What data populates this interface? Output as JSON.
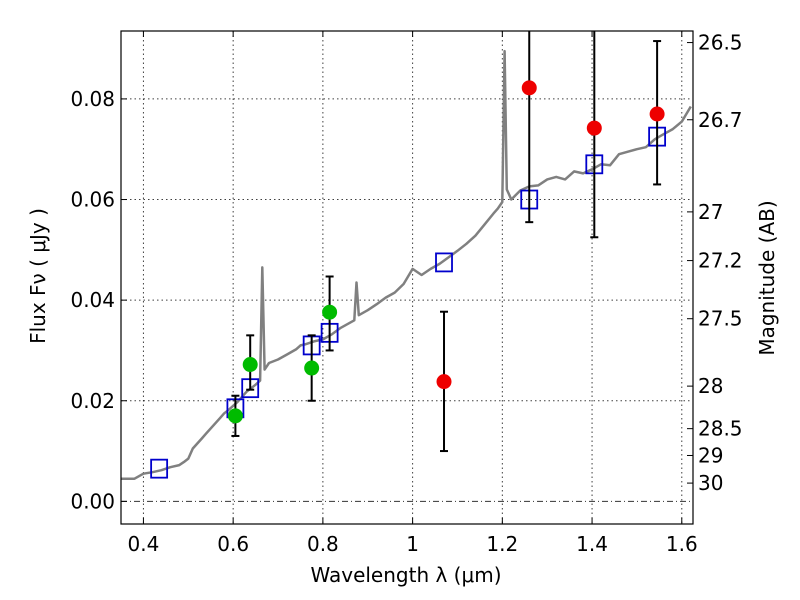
{
  "chart_data": {
    "type": "scatter",
    "xlabel": "Wavelength  λ (μm)",
    "ylabel": "Flux  Fν  ( μJy )",
    "ylabel_right": "Magnitude (AB)",
    "xlim": [
      0.35,
      1.625
    ],
    "ylim": [
      -0.0045,
      0.0935
    ],
    "grid": true,
    "x_ticks": [
      0.4,
      0.6,
      0.8,
      1.0,
      1.2,
      1.4,
      1.6
    ],
    "x_tick_labels": [
      "0.4",
      "0.6",
      "0.8",
      "1",
      "1.2",
      "1.4",
      "1.6"
    ],
    "y_ticks": [
      0.0,
      0.02,
      0.04,
      0.06,
      0.08
    ],
    "y_tick_labels": [
      "0.00",
      "0.02",
      "0.04",
      "0.06",
      "0.08"
    ],
    "right_axis": {
      "type": "magnitude_ab",
      "ticks": [
        26.5,
        26.7,
        27,
        27.2,
        27.5,
        28,
        28.5,
        29,
        30
      ],
      "tick_labels": [
        "26.5",
        "26.7",
        "27",
        "27.2",
        "27.5",
        "28",
        "28.5",
        "29",
        "30"
      ]
    },
    "series": [
      {
        "kind": "line",
        "color": "#808080",
        "x": [
          0.35,
          0.37,
          0.38,
          0.4,
          0.42,
          0.44,
          0.46,
          0.48,
          0.49,
          0.5,
          0.51,
          0.52,
          0.53,
          0.54,
          0.55,
          0.56,
          0.57,
          0.58,
          0.59,
          0.6,
          0.61,
          0.62,
          0.63,
          0.64,
          0.65,
          0.66,
          0.665,
          0.67,
          0.68,
          0.7,
          0.72,
          0.74,
          0.75,
          0.76,
          0.78,
          0.8,
          0.82,
          0.84,
          0.86,
          0.87,
          0.875,
          0.88,
          0.9,
          0.92,
          0.94,
          0.96,
          0.98,
          1.0,
          1.02,
          1.04,
          1.06,
          1.08,
          1.1,
          1.12,
          1.14,
          1.16,
          1.18,
          1.19,
          1.2,
          1.205,
          1.21,
          1.215,
          1.22,
          1.24,
          1.26,
          1.28,
          1.3,
          1.32,
          1.34,
          1.36,
          1.38,
          1.4,
          1.42,
          1.44,
          1.46,
          1.48,
          1.5,
          1.52,
          1.54,
          1.56,
          1.58,
          1.6,
          1.62
        ],
        "y": [
          0.0045,
          0.0045,
          0.0045,
          0.0055,
          0.0058,
          0.0062,
          0.0068,
          0.0072,
          0.0078,
          0.0085,
          0.0105,
          0.0115,
          0.0125,
          0.0135,
          0.0145,
          0.0155,
          0.0165,
          0.0175,
          0.0182,
          0.019,
          0.0198,
          0.0208,
          0.0218,
          0.0225,
          0.0232,
          0.024,
          0.0465,
          0.0262,
          0.0275,
          0.0282,
          0.0292,
          0.0302,
          0.031,
          0.0312,
          0.0318,
          0.0322,
          0.0332,
          0.0345,
          0.0355,
          0.036,
          0.0435,
          0.037,
          0.038,
          0.0392,
          0.0405,
          0.0415,
          0.0432,
          0.0462,
          0.045,
          0.0462,
          0.0472,
          0.0485,
          0.0498,
          0.0512,
          0.0528,
          0.055,
          0.0572,
          0.0582,
          0.0595,
          0.0895,
          0.062,
          0.061,
          0.06,
          0.0618,
          0.0626,
          0.0628,
          0.064,
          0.0645,
          0.064,
          0.0656,
          0.0652,
          0.066,
          0.067,
          0.0668,
          0.069,
          0.0695,
          0.07,
          0.0704,
          0.072,
          0.073,
          0.074,
          0.0755,
          0.0785
        ]
      },
      {
        "kind": "markers-square",
        "color": "#0000cc",
        "x": [
          0.435,
          0.605,
          0.638,
          0.775,
          0.815,
          1.07,
          1.26,
          1.405,
          1.545
        ],
        "y": [
          0.0065,
          0.0185,
          0.0225,
          0.031,
          0.0335,
          0.0475,
          0.06,
          0.067,
          0.0725
        ]
      },
      {
        "kind": "markers-circle",
        "color": "#00bb00",
        "x": [
          0.605,
          0.638,
          0.775,
          0.815
        ],
        "y": [
          0.017,
          0.0272,
          0.0265,
          0.0376
        ],
        "yerr_low": [
          0.013,
          0.0222,
          0.02,
          0.03
        ],
        "yerr_high": [
          0.021,
          0.033,
          0.033,
          0.0447
        ]
      },
      {
        "kind": "markers-circle",
        "color": "#ee0000",
        "x": [
          1.07,
          1.26,
          1.405,
          1.545
        ],
        "y": [
          0.0238,
          0.0822,
          0.0742,
          0.077
        ],
        "yerr_low": [
          0.01,
          0.0555,
          0.0525,
          0.063
        ],
        "yerr_high": [
          0.0377,
          0.0935,
          0.0935,
          0.0915
        ]
      }
    ]
  }
}
